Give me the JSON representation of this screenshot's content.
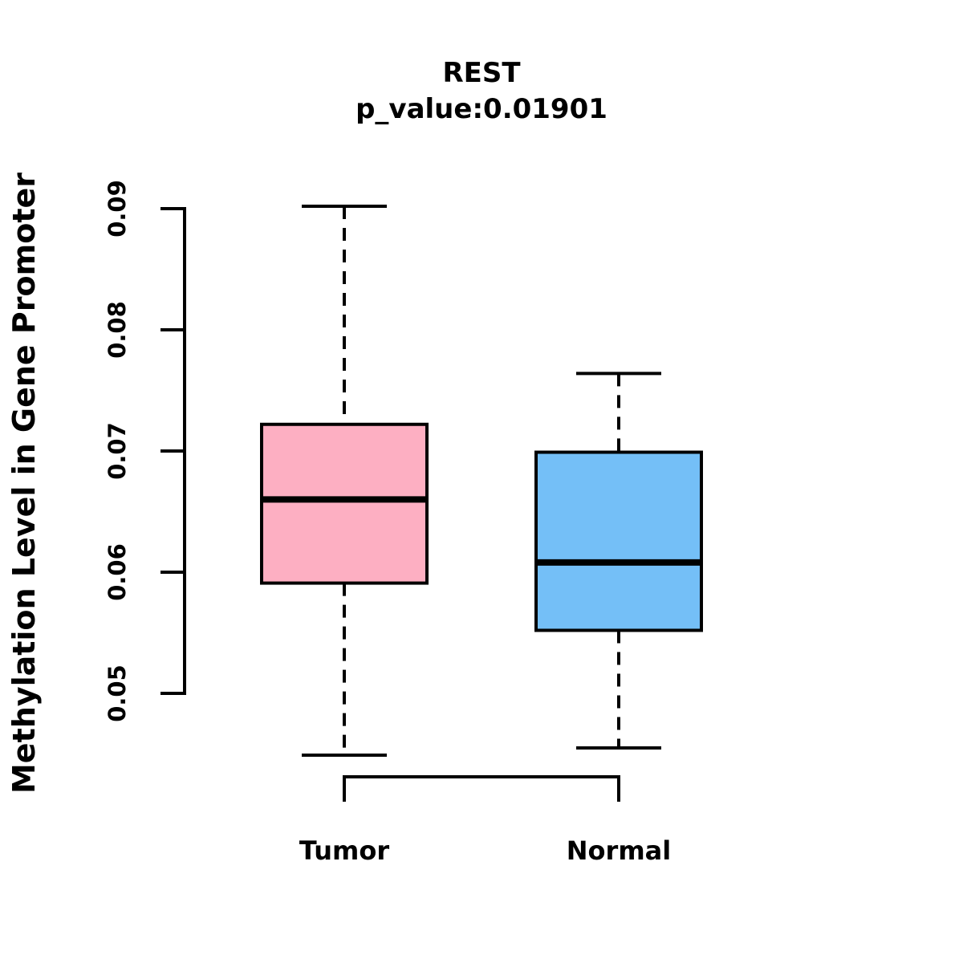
{
  "chart_data": {
    "type": "boxplot",
    "title": "REST",
    "subtitle": "p_value:0.01901",
    "ylabel": "Methylation Level in Gene Promoter",
    "xlabel": "",
    "ylim": [
      0.05,
      0.09
    ],
    "ytick_labels": [
      "0.05",
      "0.06",
      "0.07",
      "0.08",
      "0.09"
    ],
    "ytick_values": [
      0.05,
      0.06,
      0.07,
      0.08,
      0.09
    ],
    "categories": [
      "Tumor",
      "Normal"
    ],
    "series": [
      {
        "name": "Tumor",
        "box_fill": "#FDAFC2",
        "whisker_low": 0.0449,
        "q1": 0.0591,
        "median": 0.066,
        "q3": 0.0722,
        "whisker_high": 0.0902
      },
      {
        "name": "Normal",
        "box_fill": "#74BFF7",
        "whisker_low": 0.0455,
        "q1": 0.0552,
        "median": 0.0608,
        "q3": 0.0699,
        "whisker_high": 0.0764
      }
    ],
    "style": {
      "stroke_color": "#000000",
      "background": "#FFFFFF",
      "whisker_style": "dashed",
      "grid": "off",
      "legend": "none"
    }
  }
}
